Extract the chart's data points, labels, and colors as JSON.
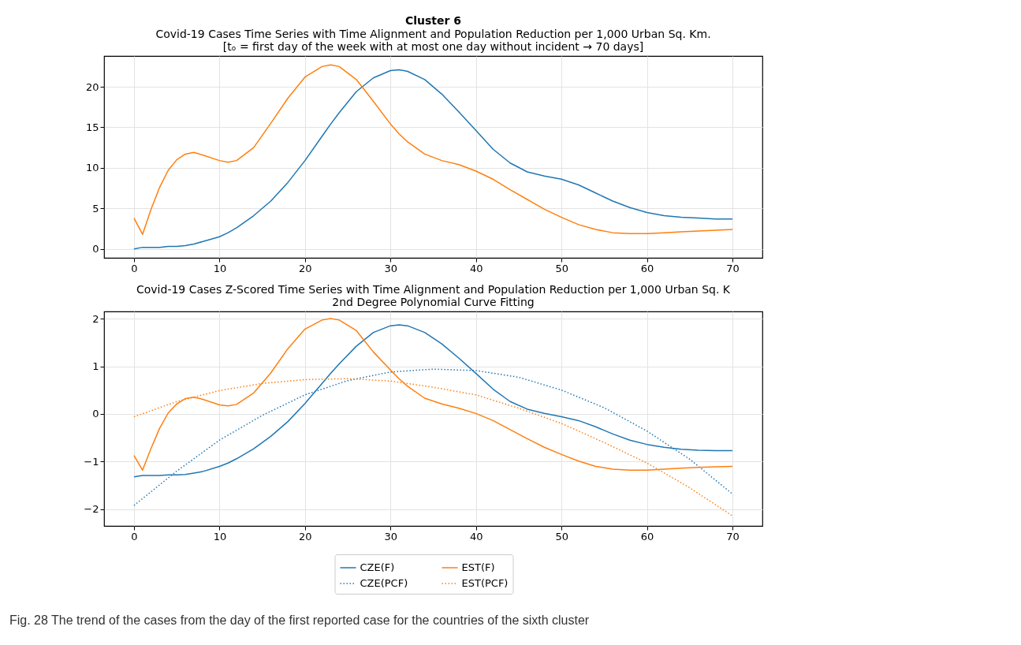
{
  "chart_data": [
    {
      "type": "line",
      "title": "Cluster 6",
      "subtitle": "Covid-19 Cases Time Series with Time Alignment and Population Reduction per 1,000 Urban Sq. Km.\n[tₒ = first day of the week with at most one day without incident  →  70 days]",
      "x": [
        0,
        1,
        2,
        3,
        4,
        5,
        6,
        7,
        8,
        10,
        11,
        12,
        14,
        16,
        18,
        20,
        22,
        23,
        24,
        26,
        28,
        30,
        31,
        32,
        34,
        36,
        38,
        40,
        42,
        44,
        46,
        48,
        50,
        52,
        54,
        56,
        58,
        60,
        62,
        64,
        66,
        68,
        70
      ],
      "series": [
        {
          "color": "#1f77b4",
          "line_style": "solid",
          "values": [
            0,
            0.2,
            0.2,
            0.2,
            0.3,
            0.3,
            0.4,
            0.6,
            0.9,
            1.5,
            2.0,
            2.6,
            4.1,
            5.9,
            8.2,
            10.9,
            13.9,
            15.4,
            16.8,
            19.4,
            21.1,
            22.0,
            22.1,
            21.9,
            20.9,
            19.1,
            16.9,
            14.6,
            12.3,
            10.6,
            9.5,
            9.0,
            8.6,
            7.9,
            6.9,
            5.9,
            5.1,
            4.5,
            4.1,
            3.9,
            3.8,
            3.7,
            3.7
          ]
        },
        {
          "color": "#ff7f0e",
          "line_style": "solid",
          "values": [
            3.8,
            1.8,
            4.9,
            7.6,
            9.7,
            11.0,
            11.7,
            11.9,
            11.6,
            10.9,
            10.7,
            10.9,
            12.5,
            15.5,
            18.6,
            21.2,
            22.5,
            22.7,
            22.5,
            20.9,
            18.2,
            15.4,
            14.2,
            13.2,
            11.7,
            10.9,
            10.4,
            9.6,
            8.6,
            7.3,
            6.1,
            4.9,
            3.9,
            3.0,
            2.4,
            2.0,
            1.9,
            1.9,
            2.0,
            2.1,
            2.2,
            2.3,
            2.4
          ]
        }
      ],
      "xlim": [
        -3.5,
        73.5
      ],
      "xticks": [
        0,
        10,
        20,
        30,
        40,
        50,
        60,
        70
      ],
      "ylim": [
        -1.1,
        23.8
      ],
      "yticks": [
        0,
        5,
        10,
        15,
        20
      ],
      "grid": true,
      "marker": "none"
    },
    {
      "type": "line",
      "title": "Covid-19 Cases Z-Scored Time Series with Time Alignment and Population Reduction per 1,000 Urban Sq. K",
      "subtitle": "2nd Degree Polynomial Curve Fitting",
      "x": [
        0,
        1,
        2,
        3,
        4,
        5,
        6,
        7,
        8,
        10,
        11,
        12,
        14,
        16,
        18,
        20,
        22,
        23,
        24,
        26,
        28,
        30,
        31,
        32,
        34,
        36,
        38,
        40,
        42,
        44,
        46,
        48,
        50,
        52,
        54,
        56,
        58,
        60,
        62,
        64,
        66,
        68,
        70
      ],
      "series": [
        {
          "name": "CZE(F)",
          "color": "#1f77b4",
          "line_style": "solid",
          "values": [
            -1.32,
            -1.29,
            -1.29,
            -1.29,
            -1.28,
            -1.28,
            -1.27,
            -1.24,
            -1.21,
            -1.1,
            -1.03,
            -0.94,
            -0.73,
            -0.47,
            -0.16,
            0.22,
            0.64,
            0.85,
            1.05,
            1.42,
            1.71,
            1.85,
            1.87,
            1.85,
            1.71,
            1.47,
            1.17,
            0.85,
            0.52,
            0.26,
            0.1,
            0.01,
            -0.06,
            -0.14,
            -0.27,
            -0.42,
            -0.55,
            -0.64,
            -0.7,
            -0.74,
            -0.76,
            -0.77,
            -0.77
          ]
        },
        {
          "name": "CZE(PCF)",
          "color": "#1f77b4",
          "line_style": "dotted",
          "x": [
            0,
            5,
            10,
            15,
            20,
            25,
            30,
            35,
            40,
            45,
            50,
            55,
            60,
            65,
            70
          ],
          "values": [
            -1.92,
            -1.2,
            -0.55,
            -0.03,
            0.4,
            0.7,
            0.88,
            0.94,
            0.91,
            0.77,
            0.5,
            0.13,
            -0.36,
            -0.95,
            -1.68
          ]
        },
        {
          "name": "EST(F)",
          "color": "#ff7f0e",
          "line_style": "solid",
          "values": [
            -0.87,
            -1.18,
            -0.72,
            -0.3,
            0.02,
            0.21,
            0.32,
            0.35,
            0.31,
            0.19,
            0.17,
            0.2,
            0.44,
            0.86,
            1.37,
            1.78,
            1.97,
            2.0,
            1.97,
            1.75,
            1.3,
            0.92,
            0.74,
            0.58,
            0.33,
            0.21,
            0.12,
            0.01,
            -0.14,
            -0.33,
            -0.52,
            -0.7,
            -0.85,
            -0.99,
            -1.1,
            -1.16,
            -1.18,
            -1.18,
            -1.16,
            -1.14,
            -1.12,
            -1.11,
            -1.1
          ]
        },
        {
          "name": "EST(PCF)",
          "color": "#ff7f0e",
          "line_style": "dotted",
          "x": [
            0,
            5,
            10,
            15,
            20,
            25,
            30,
            35,
            40,
            45,
            50,
            55,
            60,
            65,
            70
          ],
          "values": [
            -0.06,
            0.26,
            0.49,
            0.64,
            0.72,
            0.74,
            0.69,
            0.56,
            0.4,
            0.12,
            -0.2,
            -0.6,
            -1.03,
            -1.55,
            -2.14
          ]
        }
      ],
      "xlim": [
        -3.5,
        73.5
      ],
      "xticks": [
        0,
        10,
        20,
        30,
        40,
        50,
        60,
        70
      ],
      "ylim": [
        -2.35,
        2.15
      ],
      "yticks": [
        -2,
        -1,
        0,
        1,
        2
      ],
      "grid": true,
      "legend": "bottom",
      "marker": "none",
      "annotations": [
        "Fig. 28 The trend of the cases from the day of the first reported case for the countries of the sixth cluster"
      ]
    }
  ]
}
